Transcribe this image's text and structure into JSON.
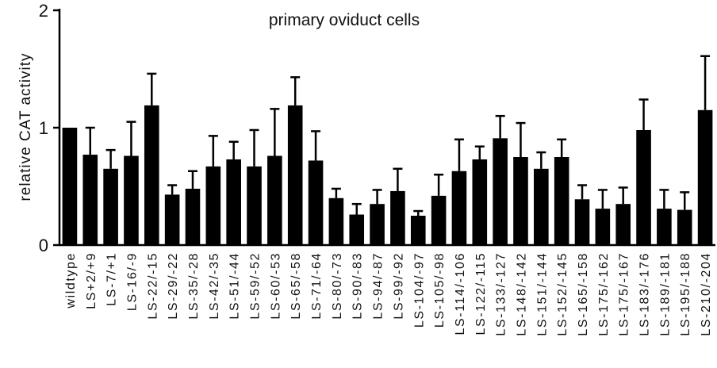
{
  "chart_data": {
    "type": "bar",
    "title": "primary oviduct cells",
    "xlabel": "",
    "ylabel": "relative  CAT  activity",
    "ylim": [
      0,
      2
    ],
    "yticks": [
      0,
      1,
      2
    ],
    "grid": false,
    "legend": "none",
    "bar_color": "#000000",
    "categories": [
      "wildtype",
      "LS+2/+9",
      "LS-7/+1",
      "LS-16/-9",
      "LS-22/-15",
      "LS-29/-22",
      "LS-35/-28",
      "LS-42/-35",
      "LS-51/-44",
      "LS-59/-52",
      "LS-60/-53",
      "LS-65/-58",
      "LS-71/-64",
      "LS-80/-73",
      "LS-90/-83",
      "LS-94/-87",
      "LS-99/-92",
      "LS-104/-97",
      "LS-105/-98",
      "LS-114/-106",
      "LS-122/-115",
      "LS-133/-127",
      "LS-148/-142",
      "LS-151/-144",
      "LS-152/-145",
      "LS-165/-158",
      "LS-175/-162",
      "LS-175/-167",
      "LS-183/-176",
      "LS-189/-181",
      "LS-195/-188",
      "LS-210/-204"
    ],
    "values": [
      1.0,
      0.77,
      0.65,
      0.76,
      1.19,
      0.43,
      0.48,
      0.67,
      0.73,
      0.67,
      0.76,
      1.19,
      0.72,
      0.4,
      0.26,
      0.35,
      0.46,
      0.25,
      0.42,
      0.63,
      0.73,
      0.91,
      0.75,
      0.65,
      0.75,
      0.39,
      0.31,
      0.35,
      0.98,
      0.31,
      0.3,
      1.15
    ],
    "errors": [
      0.0,
      0.23,
      0.16,
      0.29,
      0.27,
      0.08,
      0.15,
      0.26,
      0.15,
      0.31,
      0.4,
      0.24,
      0.25,
      0.08,
      0.09,
      0.12,
      0.19,
      0.04,
      0.18,
      0.27,
      0.11,
      0.19,
      0.29,
      0.14,
      0.15,
      0.12,
      0.16,
      0.14,
      0.26,
      0.16,
      0.15,
      0.46
    ]
  }
}
